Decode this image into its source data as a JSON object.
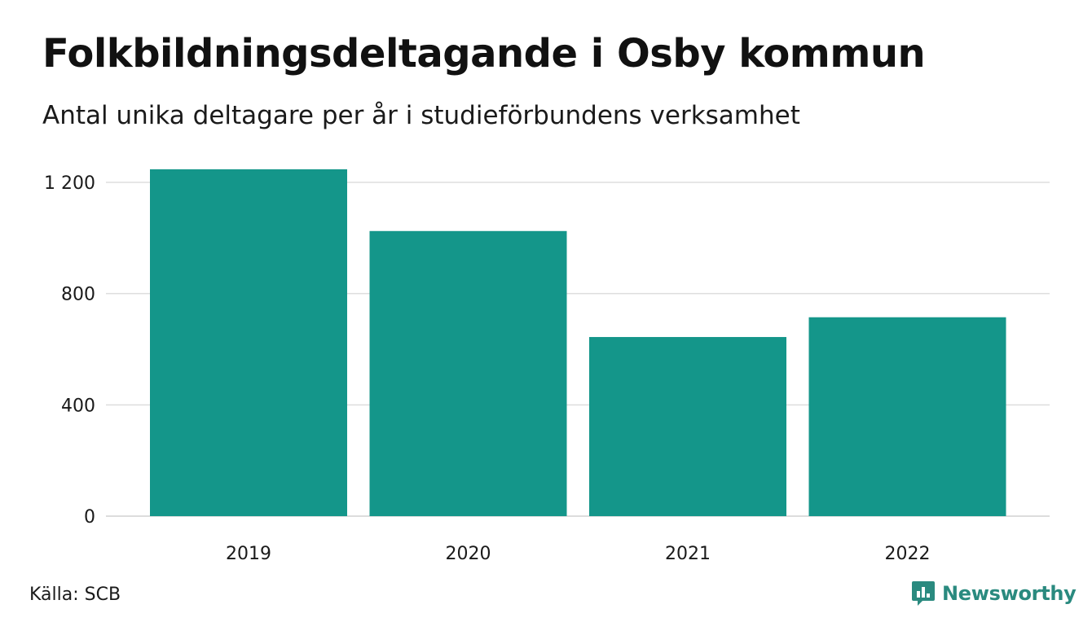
{
  "header": {
    "title": "Folkbildningsdeltagande i Osby kommun",
    "subtitle": "Antal unika deltagare per år i studieförbundens verksamhet"
  },
  "footer": {
    "source": "Källa: SCB",
    "brand": "Newsworthy"
  },
  "colors": {
    "bar": "#14968a",
    "grid": "#dddddd",
    "brand": "#2a8a7f"
  },
  "chart_data": {
    "type": "bar",
    "categories": [
      "2019",
      "2020",
      "2021",
      "2022"
    ],
    "values": [
      1247,
      1025,
      644,
      715
    ],
    "title": "Folkbildningsdeltagande i Osby kommun",
    "subtitle": "Antal unika deltagare per år i studieförbundens verksamhet",
    "xlabel": "",
    "ylabel": "",
    "ylim": [
      0,
      1200
    ],
    "yticks": [
      0,
      400,
      800,
      1200
    ],
    "ytick_labels": [
      "0",
      "400",
      "800",
      "1 200"
    ],
    "grid": true,
    "legend": "none"
  }
}
